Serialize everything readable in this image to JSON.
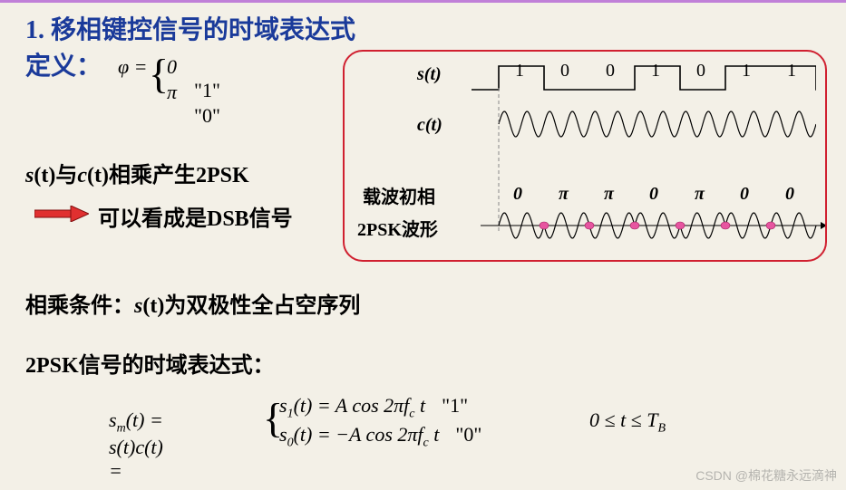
{
  "title": "1. 移相键控信号的时域表达式",
  "def_label": "定义：",
  "phi": {
    "sym": "φ =",
    "v0": "0",
    "q0": "\"1\"",
    "v1": "π",
    "q1": "\"0\""
  },
  "line2_pre": "s",
  "line2_arg1": "(t)",
  "line2_mid": "与",
  "line2_c": "c",
  "line2_arg2": "(t)",
  "line2_post": "相乘产生2PSK",
  "line3": "可以看成是DSB信号",
  "line4_pre": "相乘条件：",
  "line4_s": "s",
  "line4_arg": "(t)",
  "line4_post": "为双极性全占空序列",
  "line5": "2PSK信号的时域表达式：",
  "eq": {
    "lhs": "s<sub>m</sub>(t) = s(t)c(t) =",
    "r0": "s<sub>1</sub>(t) = A cos 2πf<sub>c</sub> t",
    "q0": "\"1\"",
    "r1": "s<sub>0</sub>(t) = −A cos 2πf<sub>c</sub> t",
    "q1": "\"0\"",
    "side": "0 ≤ t ≤ T<sub>B</sub>"
  },
  "diagram": {
    "s_label": "s(t)",
    "c_label": "c(t)",
    "phase_label": "载波初相",
    "wave_label": "2PSK波形",
    "bits": [
      "1",
      "0",
      "0",
      "1",
      "0",
      "1",
      "1"
    ],
    "phases": [
      "0",
      "π",
      "π",
      "0",
      "π",
      "0",
      "0"
    ],
    "bit_width": 50,
    "colors": {
      "line": "#000000",
      "marker": "#e755a0",
      "box": "#d02030",
      "dash": "#888888"
    }
  },
  "watermark": "CSDN @棉花糖永远滴神"
}
